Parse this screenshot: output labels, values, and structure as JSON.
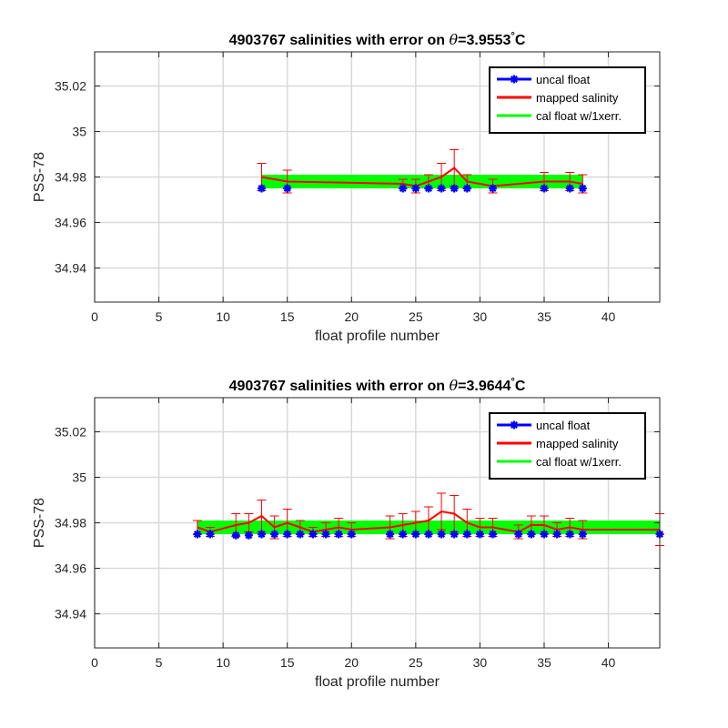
{
  "figure": {
    "background": "#ffffff"
  },
  "chart_data": [
    {
      "type": "line",
      "title_prefix": "4903767 salinities with error on ",
      "title_symbol": "θ",
      "title_value": "=3.9553",
      "title_degree": "°",
      "title_unit": "C",
      "xlabel": "float profile number",
      "ylabel": "PSS-78",
      "xlim": [
        0,
        44
      ],
      "ylim": [
        34.925,
        35.035
      ],
      "xticks": [
        0,
        5,
        10,
        15,
        20,
        25,
        30,
        35,
        40
      ],
      "xtick_labels": [
        "0",
        "5",
        "10",
        "15",
        "20",
        "25",
        "30",
        "35",
        "40"
      ],
      "yticks": [
        34.94,
        34.96,
        34.98,
        35.0,
        35.02
      ],
      "ytick_labels": [
        "34.94",
        "34.96",
        "34.98",
        "35",
        "35.02"
      ],
      "grid": true,
      "legend_position": "top-right",
      "series": [
        {
          "name": "uncal float",
          "color": "#0000ff",
          "marker": "star",
          "x": [
            13,
            15,
            24,
            25,
            26,
            27,
            28,
            29,
            31,
            35,
            37,
            38
          ],
          "y": [
            34.975,
            34.975,
            34.975,
            34.975,
            34.975,
            34.975,
            34.975,
            34.975,
            34.975,
            34.975,
            34.975,
            34.975
          ]
        },
        {
          "name": "mapped salinity",
          "color": "#ff0000",
          "x": [
            13,
            15,
            24,
            25,
            26,
            27,
            28,
            29,
            31,
            35,
            37,
            38
          ],
          "y": [
            34.98,
            34.978,
            34.977,
            34.976,
            34.978,
            34.98,
            34.984,
            34.978,
            34.976,
            34.978,
            34.978,
            34.977
          ],
          "err": [
            0.006,
            0.005,
            0.002,
            0.003,
            0.003,
            0.006,
            0.008,
            0.003,
            0.003,
            0.004,
            0.004,
            0.004
          ]
        },
        {
          "name": "cal float w/1xerr.",
          "color": "#00ff00",
          "x": [
            13,
            38
          ],
          "y_low": [
            34.975,
            34.975
          ],
          "y_high": [
            34.981,
            34.981
          ]
        }
      ]
    },
    {
      "type": "line",
      "title_prefix": "4903767 salinities with error on ",
      "title_symbol": "θ",
      "title_value": "=3.9644",
      "title_degree": "°",
      "title_unit": "C",
      "xlabel": "float profile number",
      "ylabel": "PSS-78",
      "xlim": [
        0,
        44
      ],
      "ylim": [
        34.925,
        35.035
      ],
      "xticks": [
        0,
        5,
        10,
        15,
        20,
        25,
        30,
        35,
        40
      ],
      "xtick_labels": [
        "0",
        "5",
        "10",
        "15",
        "20",
        "25",
        "30",
        "35",
        "40"
      ],
      "yticks": [
        34.94,
        34.96,
        34.98,
        35.0,
        35.02
      ],
      "ytick_labels": [
        "34.94",
        "34.96",
        "34.98",
        "35",
        "35.02"
      ],
      "grid": true,
      "legend_position": "top-right",
      "series": [
        {
          "name": "uncal float",
          "color": "#0000ff",
          "marker": "star",
          "x": [
            8,
            9,
            11,
            12,
            13,
            14,
            15,
            16,
            17,
            18,
            19,
            20,
            23,
            24,
            25,
            26,
            27,
            28,
            29,
            30,
            31,
            33,
            34,
            35,
            36,
            37,
            38,
            44
          ],
          "y": [
            34.975,
            34.975,
            34.9745,
            34.9745,
            34.975,
            34.975,
            34.975,
            34.975,
            34.975,
            34.975,
            34.975,
            34.975,
            34.975,
            34.975,
            34.975,
            34.975,
            34.975,
            34.975,
            34.975,
            34.975,
            34.975,
            34.975,
            34.975,
            34.975,
            34.975,
            34.975,
            34.975,
            34.975
          ]
        },
        {
          "name": "mapped salinity",
          "color": "#ff0000",
          "x": [
            8,
            9,
            11,
            12,
            13,
            14,
            15,
            16,
            17,
            18,
            19,
            20,
            23,
            24,
            25,
            26,
            27,
            28,
            29,
            30,
            31,
            33,
            34,
            35,
            36,
            37,
            38,
            44
          ],
          "y": [
            34.978,
            34.976,
            34.979,
            34.98,
            34.983,
            34.978,
            34.98,
            34.978,
            34.976,
            34.977,
            34.978,
            34.977,
            34.978,
            34.979,
            34.98,
            34.981,
            34.985,
            34.984,
            34.98,
            34.978,
            34.978,
            34.976,
            34.979,
            34.979,
            34.977,
            34.978,
            34.977,
            34.977
          ],
          "err": [
            0.003,
            0.002,
            0.005,
            0.004,
            0.007,
            0.005,
            0.006,
            0.003,
            0.002,
            0.003,
            0.004,
            0.003,
            0.005,
            0.005,
            0.005,
            0.006,
            0.008,
            0.008,
            0.006,
            0.004,
            0.004,
            0.003,
            0.004,
            0.004,
            0.003,
            0.004,
            0.004,
            0.007
          ]
        },
        {
          "name": "cal float w/1xerr.",
          "color": "#00ff00",
          "x": [
            8,
            44
          ],
          "y_low": [
            34.975,
            34.975
          ],
          "y_high": [
            34.981,
            34.981
          ]
        }
      ]
    }
  ]
}
